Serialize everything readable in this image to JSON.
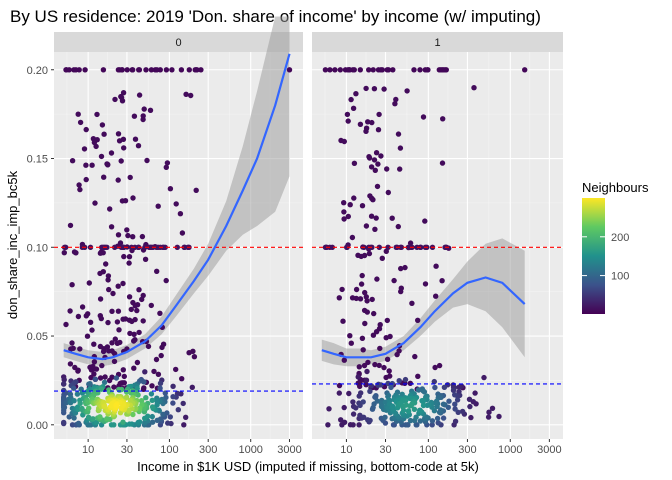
{
  "chart_data": {
    "type": "scatter",
    "title": "By US residence: 2019 'Don. share of income' by income (w/ imputing)",
    "xlabel": "Income in $1K USD (imputed if missing, bottom-code at 5k)",
    "ylabel": "don_share_inc_imp_bc5k",
    "x_scale": "log10",
    "xlim": [
      3.8,
      4400
    ],
    "ylim": [
      -0.008,
      0.21
    ],
    "x_ticks": [
      10,
      30,
      100,
      300,
      1000,
      3000
    ],
    "x_tick_labels": [
      "10",
      "30",
      "100",
      "300",
      "1000",
      "3000"
    ],
    "y_ticks": [
      0.0,
      0.05,
      0.1,
      0.15,
      0.2
    ],
    "y_tick_labels": [
      "0.00",
      "0.05",
      "0.10",
      "0.15",
      "0.20"
    ],
    "grid": true,
    "legend": {
      "title": "Neighbours",
      "position": "right",
      "type": "colorbar",
      "range": [
        1,
        300
      ],
      "ticks": [
        100,
        200
      ],
      "tick_labels": [
        "100",
        "200"
      ],
      "colors": [
        "#440154",
        "#3b528b",
        "#21918c",
        "#5ec962",
        "#fde725"
      ]
    },
    "colors": {
      "mean_line": "#ff0000",
      "median_line": "#0000ff",
      "smooth_line": "#3366ff",
      "ribbon": "#999999",
      "panel_bg": "#ebebeb",
      "strip_bg": "#d9d9d9"
    },
    "panels": [
      {
        "label": "0",
        "hline_red": 0.1,
        "hline_blue": 0.019,
        "smooth": {
          "x": [
            5,
            7,
            10,
            15,
            20,
            30,
            50,
            80,
            120,
            200,
            300,
            500,
            800,
            1200,
            2000,
            3000
          ],
          "y": [
            0.042,
            0.04,
            0.038,
            0.037,
            0.038,
            0.041,
            0.047,
            0.056,
            0.067,
            0.081,
            0.093,
            0.112,
            0.132,
            0.15,
            0.18,
            0.209
          ],
          "lower": [
            0.038,
            0.036,
            0.034,
            0.033,
            0.034,
            0.037,
            0.043,
            0.051,
            0.061,
            0.074,
            0.084,
            0.098,
            0.107,
            0.112,
            0.12,
            0.14
          ],
          "upper": [
            0.046,
            0.044,
            0.042,
            0.041,
            0.042,
            0.045,
            0.051,
            0.061,
            0.073,
            0.088,
            0.102,
            0.126,
            0.157,
            0.188,
            0.24,
            0.28
          ]
        },
        "point_counts": {
          "top_row": 30,
          "mean_row": 35,
          "scatter": 220,
          "dense_low": 320
        }
      },
      {
        "label": "1",
        "hline_red": 0.1,
        "hline_blue": 0.023,
        "smooth": {
          "x": [
            5,
            7,
            10,
            15,
            20,
            30,
            50,
            80,
            120,
            200,
            300,
            500,
            800,
            1500
          ],
          "y": [
            0.042,
            0.04,
            0.038,
            0.038,
            0.038,
            0.04,
            0.046,
            0.055,
            0.064,
            0.074,
            0.08,
            0.083,
            0.08,
            0.068
          ],
          "lower": [
            0.036,
            0.034,
            0.033,
            0.033,
            0.034,
            0.036,
            0.042,
            0.05,
            0.058,
            0.066,
            0.068,
            0.064,
            0.055,
            0.038
          ],
          "upper": [
            0.048,
            0.046,
            0.043,
            0.043,
            0.042,
            0.044,
            0.05,
            0.06,
            0.07,
            0.082,
            0.092,
            0.102,
            0.105,
            0.098
          ]
        },
        "point_counts": {
          "top_row": 30,
          "mean_row": 30,
          "scatter": 150,
          "dense_low": 230
        }
      }
    ]
  }
}
